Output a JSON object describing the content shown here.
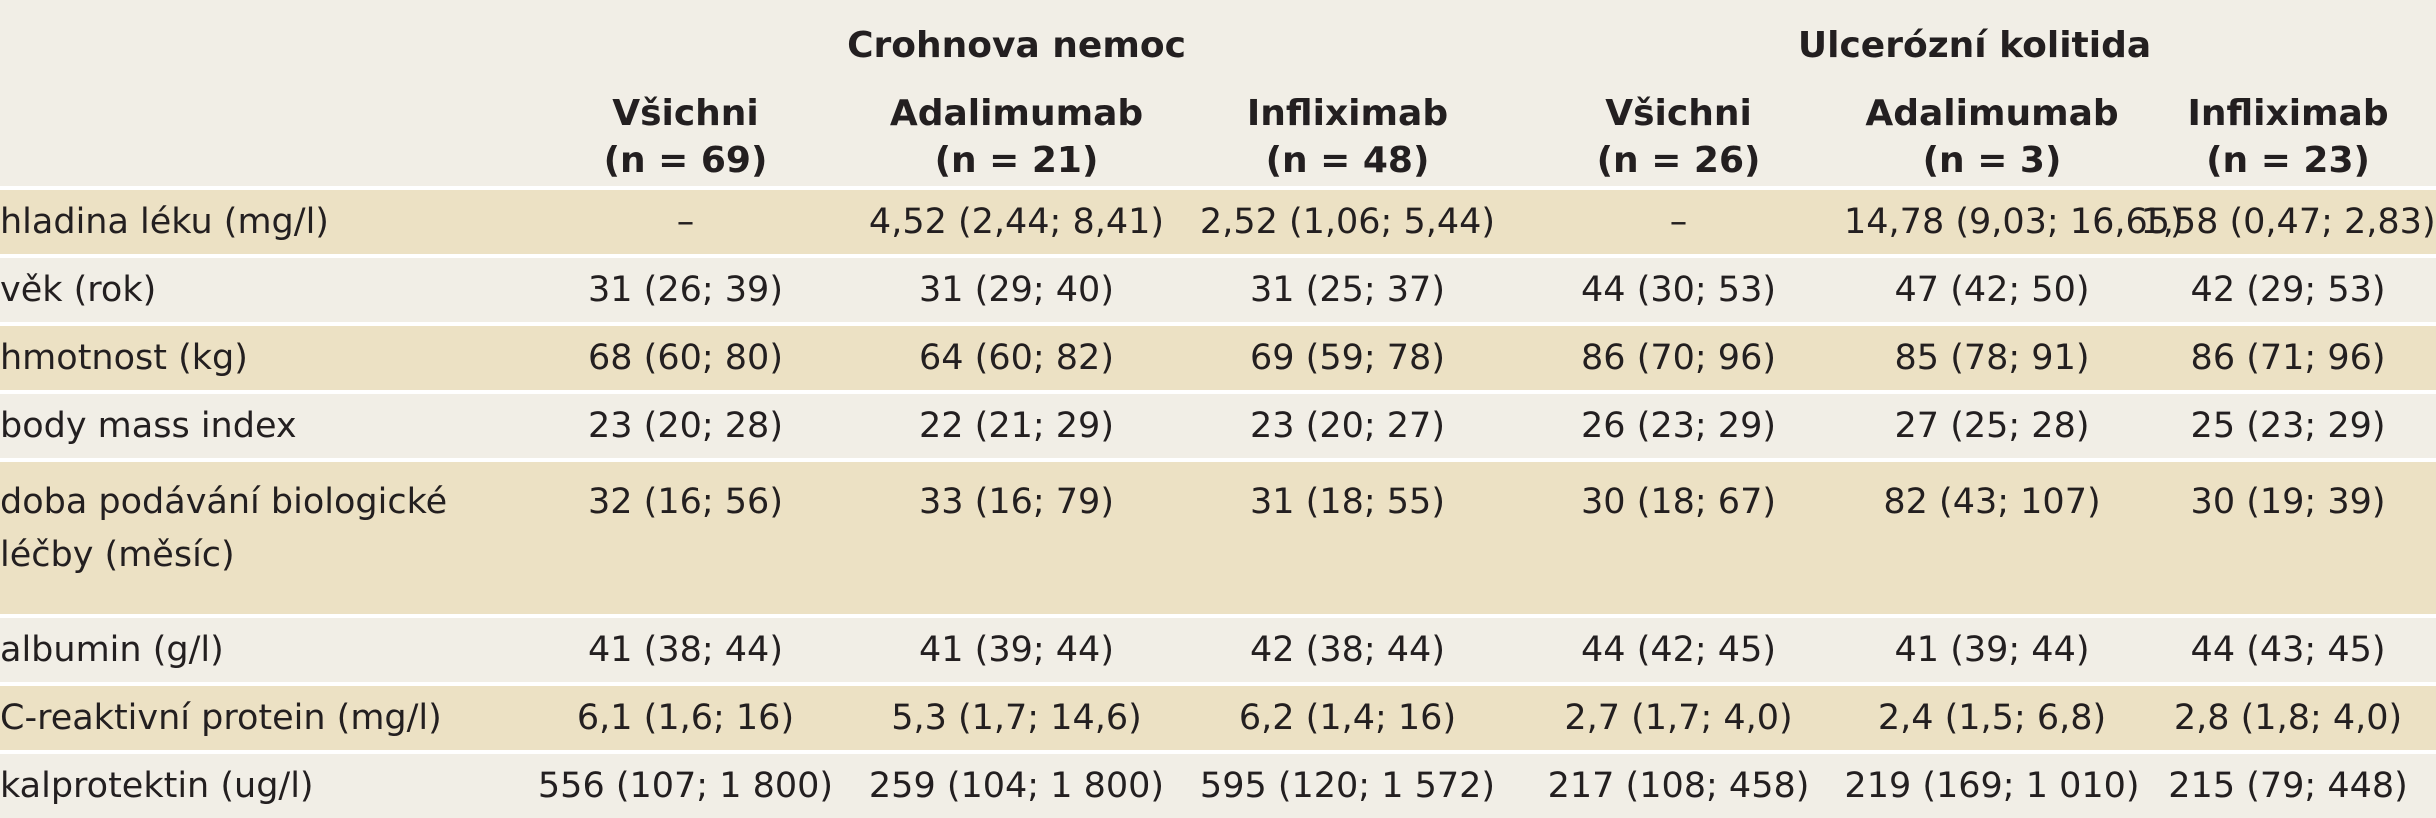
{
  "table": {
    "groups": [
      {
        "label": "Crohnova nemoc"
      },
      {
        "label": "Ulcerózní kolitida"
      }
    ],
    "columns": [
      {
        "name": "Všichni",
        "n": "(n = 69)"
      },
      {
        "name": "Adalimumab",
        "n": "(n = 21)"
      },
      {
        "name": "Infliximab",
        "n": "(n = 48)"
      },
      {
        "name": "Všichni",
        "n": "(n = 26)"
      },
      {
        "name": "Adalimumab",
        "n": "(n = 3)"
      },
      {
        "name": "Infliximab",
        "n": "(n = 23)"
      }
    ],
    "rows": [
      {
        "label": "hladina léku (mg/l)",
        "values": [
          "–",
          "4,52 (2,44; 8,41)",
          "2,52 (1,06; 5,44)",
          "–",
          "14,78 (9,03; 16,65)",
          "1,58 (0,47; 2,83)"
        ]
      },
      {
        "label": "věk (rok)",
        "values": [
          "31 (26; 39)",
          "31 (29; 40)",
          "31 (25; 37)",
          "44 (30; 53)",
          "47 (42; 50)",
          "42 (29; 53)"
        ]
      },
      {
        "label": "hmotnost (kg)",
        "values": [
          "68 (60; 80)",
          "64 (60; 82)",
          "69 (59; 78)",
          "86 (70; 96)",
          "85 (78; 91)",
          "86 (71; 96)"
        ]
      },
      {
        "label": "body mass index",
        "values": [
          "23 (20; 28)",
          "22 (21; 29)",
          "23 (20; 27)",
          "26 (23; 29)",
          "27 (25; 28)",
          "25 (23; 29)"
        ]
      },
      {
        "label": "doba podávání biologické léčby (měsíc)",
        "values": [
          "32 (16; 56)",
          "33 (16; 79)",
          "31 (18; 55)",
          "30 (18; 67)",
          "82 (43; 107)",
          "30 (19; 39)"
        ]
      },
      {
        "label": "albumin (g/l)",
        "values": [
          "41 (38; 44)",
          "41 (39; 44)",
          "42 (38; 44)",
          "44 (42; 45)",
          "41 (39; 44)",
          "44 (43; 45)"
        ]
      },
      {
        "label": "C-reaktivní protein (mg/l)",
        "values": [
          "6,1 (1,6; 16)",
          "5,3 (1,7; 14,6)",
          "6,2 (1,4; 16)",
          "2,7 (1,7; 4,0)",
          "2,4 (1,5; 6,8)",
          "2,8 (1,8; 4,0)"
        ]
      },
      {
        "label": "kalprotektin (ug/l)",
        "values": [
          "556 (107; 1 800)",
          "259 (104; 1 800)",
          "595 (120; 1 572)",
          "217 (108; 458)",
          "219 (169; 1 010)",
          "215 (79; 448)"
        ]
      }
    ]
  }
}
